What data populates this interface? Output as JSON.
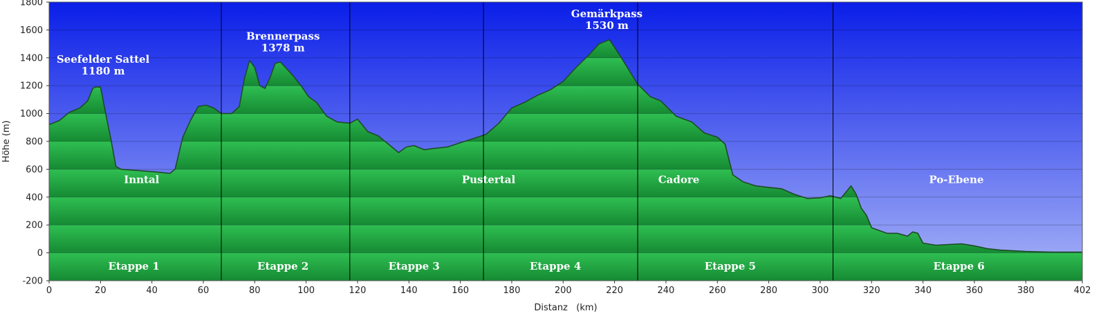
{
  "chart_data": {
    "type": "area",
    "xlabel": "Distanz   (km)",
    "ylabel": "Höhe (m)",
    "xlim": [
      0,
      402
    ],
    "ylim": [
      -200,
      1800
    ],
    "x_ticks": [
      0,
      20,
      40,
      60,
      80,
      100,
      120,
      140,
      160,
      180,
      200,
      220,
      240,
      260,
      280,
      300,
      320,
      340,
      360,
      380,
      402
    ],
    "y_ticks": [
      -200,
      0,
      200,
      400,
      600,
      800,
      1000,
      1200,
      1400,
      1600,
      1800
    ],
    "grid": true,
    "colors": {
      "sky_top": "#0a1ee8",
      "sky_bottom": "#a9b5f7",
      "fill_light": "#2fbf52",
      "fill_dark": "#168a33",
      "outline": "#1f4a26",
      "divider": "#000000",
      "label": "#ffffff"
    },
    "stage_boundaries": [
      67,
      117,
      169,
      229,
      305
    ],
    "stages": [
      {
        "label": "Etappe 1",
        "x": 33
      },
      {
        "label": "Etappe 2",
        "x": 91
      },
      {
        "label": "Etappe 3",
        "x": 142
      },
      {
        "label": "Etappe 4",
        "x": 197
      },
      {
        "label": "Etappe 5",
        "x": 265
      },
      {
        "label": "Etappe 6",
        "x": 354
      }
    ],
    "region_labels": [
      {
        "label": "Inntal",
        "x": 36,
        "y": 490
      },
      {
        "label": "Pustertal",
        "x": 171,
        "y": 490
      },
      {
        "label": "Cadore",
        "x": 245,
        "y": 490
      },
      {
        "label": "Po-Ebene",
        "x": 353,
        "y": 490
      }
    ],
    "passes": [
      {
        "name": "Seefelder Sattel",
        "elevation": "1180 m",
        "x": 21,
        "y": 1375
      },
      {
        "name": "Brennerpass",
        "elevation": "1378 m",
        "x": 91,
        "y": 1540
      },
      {
        "name": "Gemärkpass",
        "elevation": "1530 m",
        "x": 217,
        "y": 1700
      }
    ],
    "series": [
      {
        "x": [
          0,
          4,
          8,
          12,
          15,
          17,
          18,
          20,
          22,
          24,
          26,
          28,
          35,
          42,
          47,
          49,
          52,
          55,
          58,
          61,
          64,
          67,
          71,
          74,
          76,
          78,
          80,
          82,
          84,
          86,
          88,
          90,
          92,
          95,
          98,
          101,
          104,
          108,
          112,
          117,
          120,
          124,
          128,
          132,
          136,
          139,
          142,
          146,
          150,
          155,
          160,
          165,
          170,
          175,
          180,
          185,
          190,
          195,
          200,
          205,
          210,
          214,
          218,
          222,
          226,
          229,
          234,
          238,
          244,
          250,
          255,
          260,
          263,
          266,
          270,
          275,
          280,
          285,
          290,
          295,
          300,
          304,
          308,
          312,
          314,
          316,
          318,
          320,
          323,
          326,
          330,
          334,
          336,
          338,
          340,
          345,
          350,
          355,
          360,
          365,
          370,
          375,
          380,
          390,
          402
        ],
        "values": [
          920,
          950,
          1010,
          1040,
          1090,
          1180,
          1190,
          1190,
          1000,
          820,
          620,
          600,
          590,
          580,
          570,
          600,
          830,
          950,
          1050,
          1060,
          1040,
          1000,
          1000,
          1050,
          1250,
          1380,
          1330,
          1200,
          1180,
          1260,
          1360,
          1370,
          1330,
          1270,
          1200,
          1120,
          1080,
          980,
          940,
          930,
          960,
          870,
          840,
          780,
          720,
          760,
          770,
          740,
          750,
          760,
          790,
          820,
          850,
          930,
          1040,
          1080,
          1130,
          1170,
          1230,
          1330,
          1420,
          1500,
          1530,
          1420,
          1300,
          1210,
          1120,
          1090,
          980,
          940,
          860,
          830,
          780,
          560,
          510,
          480,
          470,
          460,
          420,
          390,
          395,
          410,
          390,
          480,
          420,
          320,
          270,
          180,
          160,
          140,
          140,
          120,
          150,
          140,
          70,
          55,
          60,
          65,
          50,
          30,
          20,
          15,
          10,
          5,
          5
        ]
      }
    ]
  }
}
